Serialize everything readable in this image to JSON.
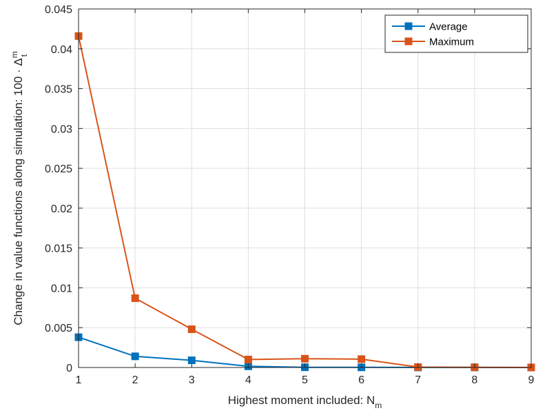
{
  "chart_data": {
    "type": "line",
    "title": "",
    "xlabel": {
      "text": "Highest moment included: N",
      "sub": "m"
    },
    "ylabel": {
      "text": "Change in value functions along simulation: 100 · Δ",
      "sup": "m",
      "sub": "t"
    },
    "x": [
      1,
      2,
      3,
      4,
      5,
      6,
      7,
      8,
      9
    ],
    "xlim": [
      1,
      9
    ],
    "ylim": [
      0,
      0.045
    ],
    "xticks": [
      "1",
      "2",
      "3",
      "4",
      "5",
      "6",
      "7",
      "8",
      "9"
    ],
    "yticks": [
      "0",
      "0.005",
      "0.01",
      "0.015",
      "0.02",
      "0.025",
      "0.03",
      "0.035",
      "0.04",
      "0.045"
    ],
    "grid": true,
    "legend_position": "top-right",
    "series": [
      {
        "name": "Average",
        "color": "#0072BD",
        "marker": "square",
        "values": [
          0.0038,
          0.0014,
          0.0009,
          0.00015,
          3e-05,
          2e-05,
          1e-05,
          1e-05,
          0.0
        ]
      },
      {
        "name": "Maximum",
        "color": "#D95319",
        "marker": "square",
        "values": [
          0.0416,
          0.0087,
          0.0048,
          0.001,
          0.0011,
          0.00105,
          5e-05,
          3e-05,
          1e-05
        ]
      }
    ]
  }
}
